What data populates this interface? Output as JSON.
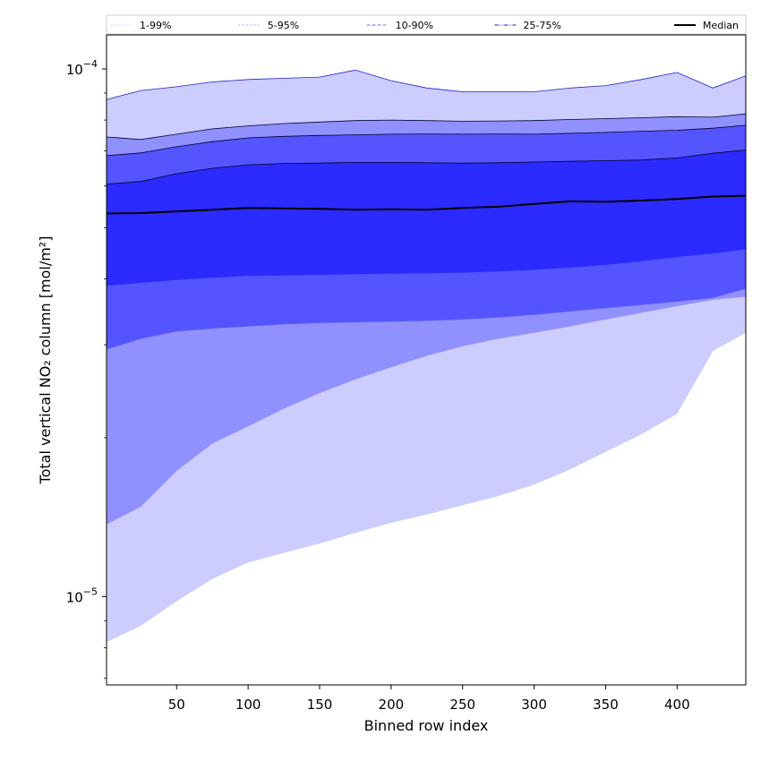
{
  "chart_data": {
    "type": "area",
    "xlabel": "Binned row index",
    "ylabel": "Total vertical NO₂ column [mol/m²]",
    "y_scale": "log",
    "xlim": [
      1,
      448
    ],
    "ylim": [
      6.8e-06,
      0.000116
    ],
    "x_ticks": [
      50,
      100,
      150,
      200,
      250,
      300,
      350,
      400
    ],
    "x_tick_labels": [
      "50",
      "100",
      "150",
      "200",
      "250",
      "300",
      "350",
      "400"
    ],
    "y_ticks": [
      1e-05,
      0.0001
    ],
    "y_tick_labels": [
      {
        "base": "10",
        "exp": "−5"
      },
      {
        "base": "10",
        "exp": "−4"
      }
    ],
    "grid": false,
    "legend_position": "top, spanning full width",
    "legend": [
      {
        "label": "1-99%",
        "color": "#ccccff",
        "style": "dotted"
      },
      {
        "label": "5-95%",
        "color": "#9090ff",
        "style": "dotted"
      },
      {
        "label": "10-90%",
        "color": "#8a8af5",
        "style": "dashed"
      },
      {
        "label": "25-75%",
        "color": "#4848ee",
        "style": "dashdot"
      },
      {
        "label": "Median",
        "color": "#000000",
        "style": "solid"
      }
    ],
    "x": [
      1,
      25,
      50,
      75,
      100,
      125,
      150,
      175,
      200,
      225,
      250,
      275,
      300,
      325,
      350,
      375,
      400,
      425,
      448
    ],
    "series": [
      {
        "name": "1-99%",
        "color": "#ccccff",
        "lower": [
          8.2e-06,
          8.8e-06,
          9.8e-06,
          1.08e-05,
          1.16e-05,
          1.21e-05,
          1.26e-05,
          1.32e-05,
          1.38e-05,
          1.43e-05,
          1.49e-05,
          1.55e-05,
          1.63e-05,
          1.74e-05,
          1.88e-05,
          2.03e-05,
          2.22e-05,
          2.92e-05,
          3.16e-05
        ],
        "upper": [
          8.75e-05,
          9.1e-05,
          9.25e-05,
          9.45e-05,
          9.55e-05,
          9.6e-05,
          9.65e-05,
          9.95e-05,
          9.5e-05,
          9.2e-05,
          9.05e-05,
          9.05e-05,
          9.05e-05,
          9.2e-05,
          9.3e-05,
          9.55e-05,
          9.85e-05,
          9.2e-05,
          9.7e-05
        ]
      },
      {
        "name": "5-95%",
        "color": "#9090ff",
        "lower": [
          1.37e-05,
          1.48e-05,
          1.73e-05,
          1.95e-05,
          2.1e-05,
          2.27e-05,
          2.43e-05,
          2.58e-05,
          2.72e-05,
          2.86e-05,
          2.98e-05,
          3.08e-05,
          3.16e-05,
          3.25e-05,
          3.35e-05,
          3.45e-05,
          3.55e-05,
          3.65e-05,
          3.7e-05
        ],
        "upper": [
          7.43e-05,
          7.35e-05,
          7.52e-05,
          7.7e-05,
          7.8e-05,
          7.88e-05,
          7.93e-05,
          7.98e-05,
          8e-05,
          7.98e-05,
          7.96e-05,
          7.97e-05,
          7.98e-05,
          8.02e-05,
          8.05e-05,
          8.08e-05,
          8.12e-05,
          8.1e-05,
          8.22e-05
        ]
      },
      {
        "name": "10-90%",
        "color": "#5555ff",
        "lower": [
          2.94e-05,
          3.08e-05,
          3.18e-05,
          3.22e-05,
          3.25e-05,
          3.28e-05,
          3.3e-05,
          3.31e-05,
          3.32e-05,
          3.33e-05,
          3.35e-05,
          3.38e-05,
          3.42e-05,
          3.47e-05,
          3.52e-05,
          3.57e-05,
          3.62e-05,
          3.68e-05,
          3.83e-05
        ],
        "upper": [
          6.85e-05,
          6.93e-05,
          7.12e-05,
          7.28e-05,
          7.4e-05,
          7.45e-05,
          7.48e-05,
          7.5e-05,
          7.52e-05,
          7.53e-05,
          7.52e-05,
          7.53e-05,
          7.52e-05,
          7.55e-05,
          7.58e-05,
          7.62e-05,
          7.65e-05,
          7.72e-05,
          7.82e-05
        ]
      },
      {
        "name": "25-75%",
        "color": "#2b2bff",
        "lower": [
          3.88e-05,
          3.93e-05,
          3.98e-05,
          4.02e-05,
          4.05e-05,
          4.06e-05,
          4.07e-05,
          4.08e-05,
          4.09e-05,
          4.1e-05,
          4.11e-05,
          4.13e-05,
          4.16e-05,
          4.2e-05,
          4.25e-05,
          4.32e-05,
          4.4e-05,
          4.47e-05,
          4.55e-05
        ],
        "upper": [
          6.05e-05,
          6.12e-05,
          6.33e-05,
          6.48e-05,
          6.58e-05,
          6.62e-05,
          6.63e-05,
          6.65e-05,
          6.65e-05,
          6.64e-05,
          6.63e-05,
          6.64e-05,
          6.66e-05,
          6.68e-05,
          6.7e-05,
          6.72e-05,
          6.78e-05,
          6.92e-05,
          7.02e-05
        ]
      },
      {
        "name": "Median",
        "color": "#000000",
        "values": [
          5.32e-05,
          5.33e-05,
          5.37e-05,
          5.41e-05,
          5.45e-05,
          5.44e-05,
          5.43e-05,
          5.41e-05,
          5.42e-05,
          5.41e-05,
          5.45e-05,
          5.48e-05,
          5.55e-05,
          5.61e-05,
          5.6e-05,
          5.63e-05,
          5.67e-05,
          5.73e-05,
          5.75e-05
        ]
      }
    ]
  }
}
